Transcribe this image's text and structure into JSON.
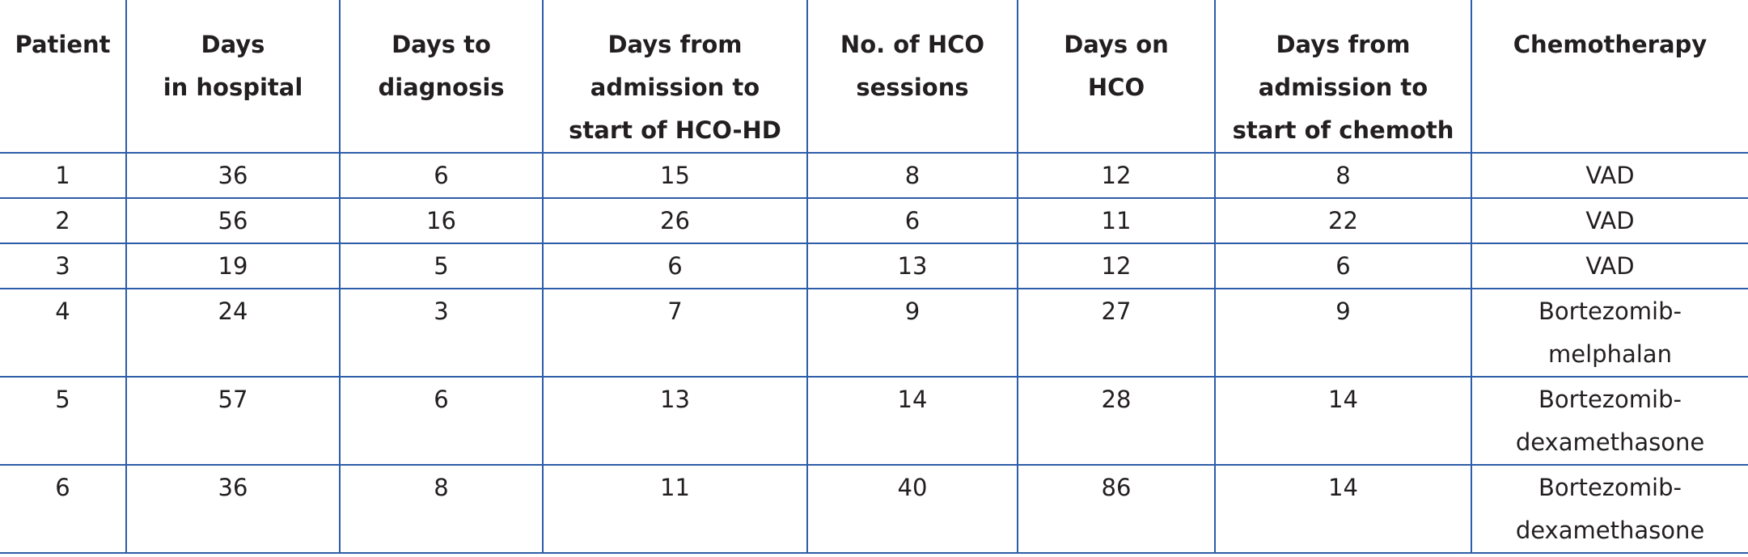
{
  "table": {
    "header": [
      [
        "Patient"
      ],
      [
        "Days",
        "in hospital"
      ],
      [
        "Days to",
        "diagnosis"
      ],
      [
        "Days from",
        "admission to",
        "start of  HCO-HD"
      ],
      [
        "No. of HCO",
        "sessions"
      ],
      [
        "Days on",
        "HCO"
      ],
      [
        "Days from",
        "admission to",
        "start of chemoth"
      ],
      [
        "Chemotherapy"
      ]
    ],
    "rows": [
      [
        1,
        36,
        6,
        15,
        8,
        12,
        8,
        [
          "VAD"
        ]
      ],
      [
        2,
        56,
        16,
        26,
        6,
        11,
        22,
        [
          "VAD"
        ]
      ],
      [
        3,
        19,
        5,
        6,
        13,
        12,
        6,
        [
          "VAD"
        ]
      ],
      [
        4,
        24,
        3,
        7,
        9,
        27,
        9,
        [
          "Bortezomib-",
          "melphalan"
        ]
      ],
      [
        5,
        57,
        6,
        13,
        14,
        28,
        14,
        [
          "Bortezomib-",
          "dexamethasone"
        ]
      ],
      [
        6,
        36,
        8,
        11,
        40,
        86,
        14,
        [
          "Bortezomib-",
          "dexamethasone"
        ]
      ]
    ]
  }
}
